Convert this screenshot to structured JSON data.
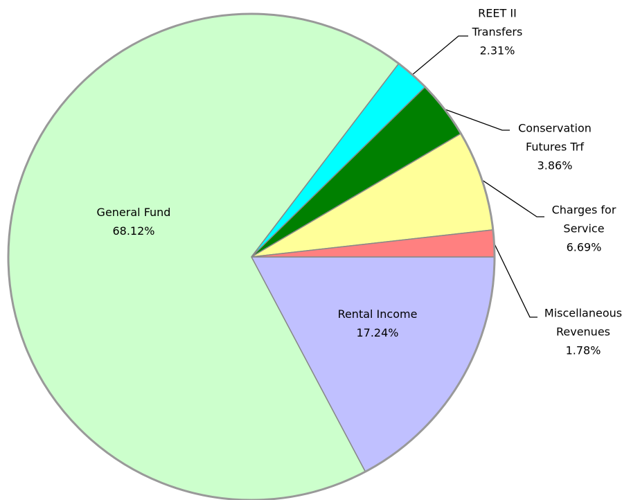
{
  "chart_data": {
    "type": "pie",
    "categories": [
      "Rental Income",
      "General Fund",
      "REET II Transfers",
      "Conservation Futures Trf",
      "Charges for Service",
      "Miscellaneous Revenues"
    ],
    "values": [
      17.24,
      68.12,
      2.31,
      3.86,
      6.69,
      1.78
    ],
    "value_labels": [
      "17.24%",
      "68.12%",
      "2.31%",
      "3.86%",
      "6.69%",
      "1.78%"
    ],
    "colors": [
      "#c0c0ff",
      "#ccffcc",
      "#00ffff",
      "#008000",
      "#ffff99",
      "#ff8080"
    ]
  }
}
